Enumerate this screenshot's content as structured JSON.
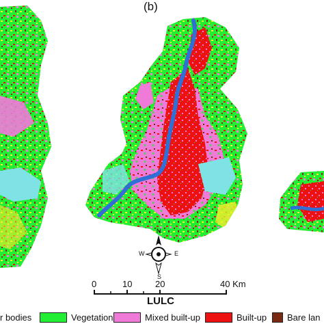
{
  "panel_label": "(b)",
  "colors": {
    "water_bodies": "#2f6fd6",
    "vegetation": "#22ee33",
    "mixed_built_up": "#f07ad8",
    "built_up": "#ee1111",
    "bare_land": "#7a2a10",
    "fallow": "#f5ef2a",
    "cyan_class": "#7fe3e6"
  },
  "compass": {
    "n": "N",
    "s": "S",
    "e": "E",
    "w": "W"
  },
  "scale": {
    "ticks": [
      "0",
      "10",
      "20",
      "40 Km"
    ]
  },
  "legend": {
    "title": "LULC",
    "items": [
      {
        "label": "r bodies",
        "color": "#2f6fd6"
      },
      {
        "label": "Vegetation",
        "color": "#22ee33"
      },
      {
        "label": "Mixed built-up",
        "color": "#f07ad8"
      },
      {
        "label": "Built-up",
        "color": "#ee1111"
      },
      {
        "label": "Bare lan",
        "color": "#7a2a10"
      }
    ]
  }
}
